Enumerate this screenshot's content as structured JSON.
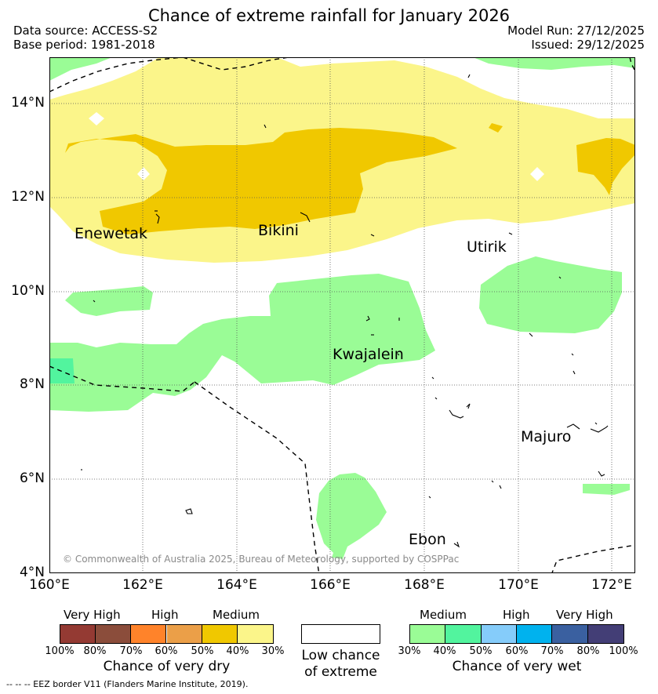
{
  "header": {
    "title": "Chance of extreme rainfall for January 2026",
    "data_source": "Data source: ACCESS-S2",
    "base_period": "Base period: 1981-2018",
    "model_run": "Model Run: 27/12/2025",
    "issued": "Issued: 29/12/2025"
  },
  "map": {
    "lat_labels": [
      "14°N",
      "12°N",
      "10°N",
      "8°N",
      "6°N",
      "4°N"
    ],
    "lon_labels": [
      "160°E",
      "162°E",
      "164°E",
      "166°E",
      "168°E",
      "170°E",
      "172°E"
    ],
    "places": [
      "Enewetak",
      "Bikini",
      "Utirik",
      "Kwajalein",
      "Majuro",
      "Ebon"
    ],
    "copyright": "© Commonwealth of Australia 2025, Bureau of Meteorology, supported by COSPPac",
    "colors": {
      "medium_dry": "#f0c800",
      "light_dry": "#fbf58a",
      "light_wet": "#9afc96",
      "medium_wet": "#52f49e"
    }
  },
  "legend": {
    "dry": {
      "levels": [
        "Very High",
        "High",
        "Medium"
      ],
      "ticks": [
        "100%",
        "80%",
        "70%",
        "60%",
        "50%",
        "40%",
        "30%"
      ],
      "title": "Chance of very dry",
      "colors": [
        "#943a33",
        "#8b4d3b",
        "#ff832a",
        "#eb9f48",
        "#f0c800",
        "#fbf58a"
      ]
    },
    "low": {
      "line1": "Low chance",
      "line2": "of extreme"
    },
    "wet": {
      "levels": [
        "Medium",
        "High",
        "Very High"
      ],
      "ticks": [
        "30%",
        "40%",
        "50%",
        "60%",
        "70%",
        "80%",
        "100%"
      ],
      "title": "Chance of very wet",
      "colors": [
        "#9afc96",
        "#52f49e",
        "#85ccfa",
        "#00b2ee",
        "#3a60a0",
        "#433e76"
      ]
    }
  },
  "footer": {
    "eez_note": "--  --  -- EEZ border V11 (Flanders Marine Institute, 2019)."
  }
}
